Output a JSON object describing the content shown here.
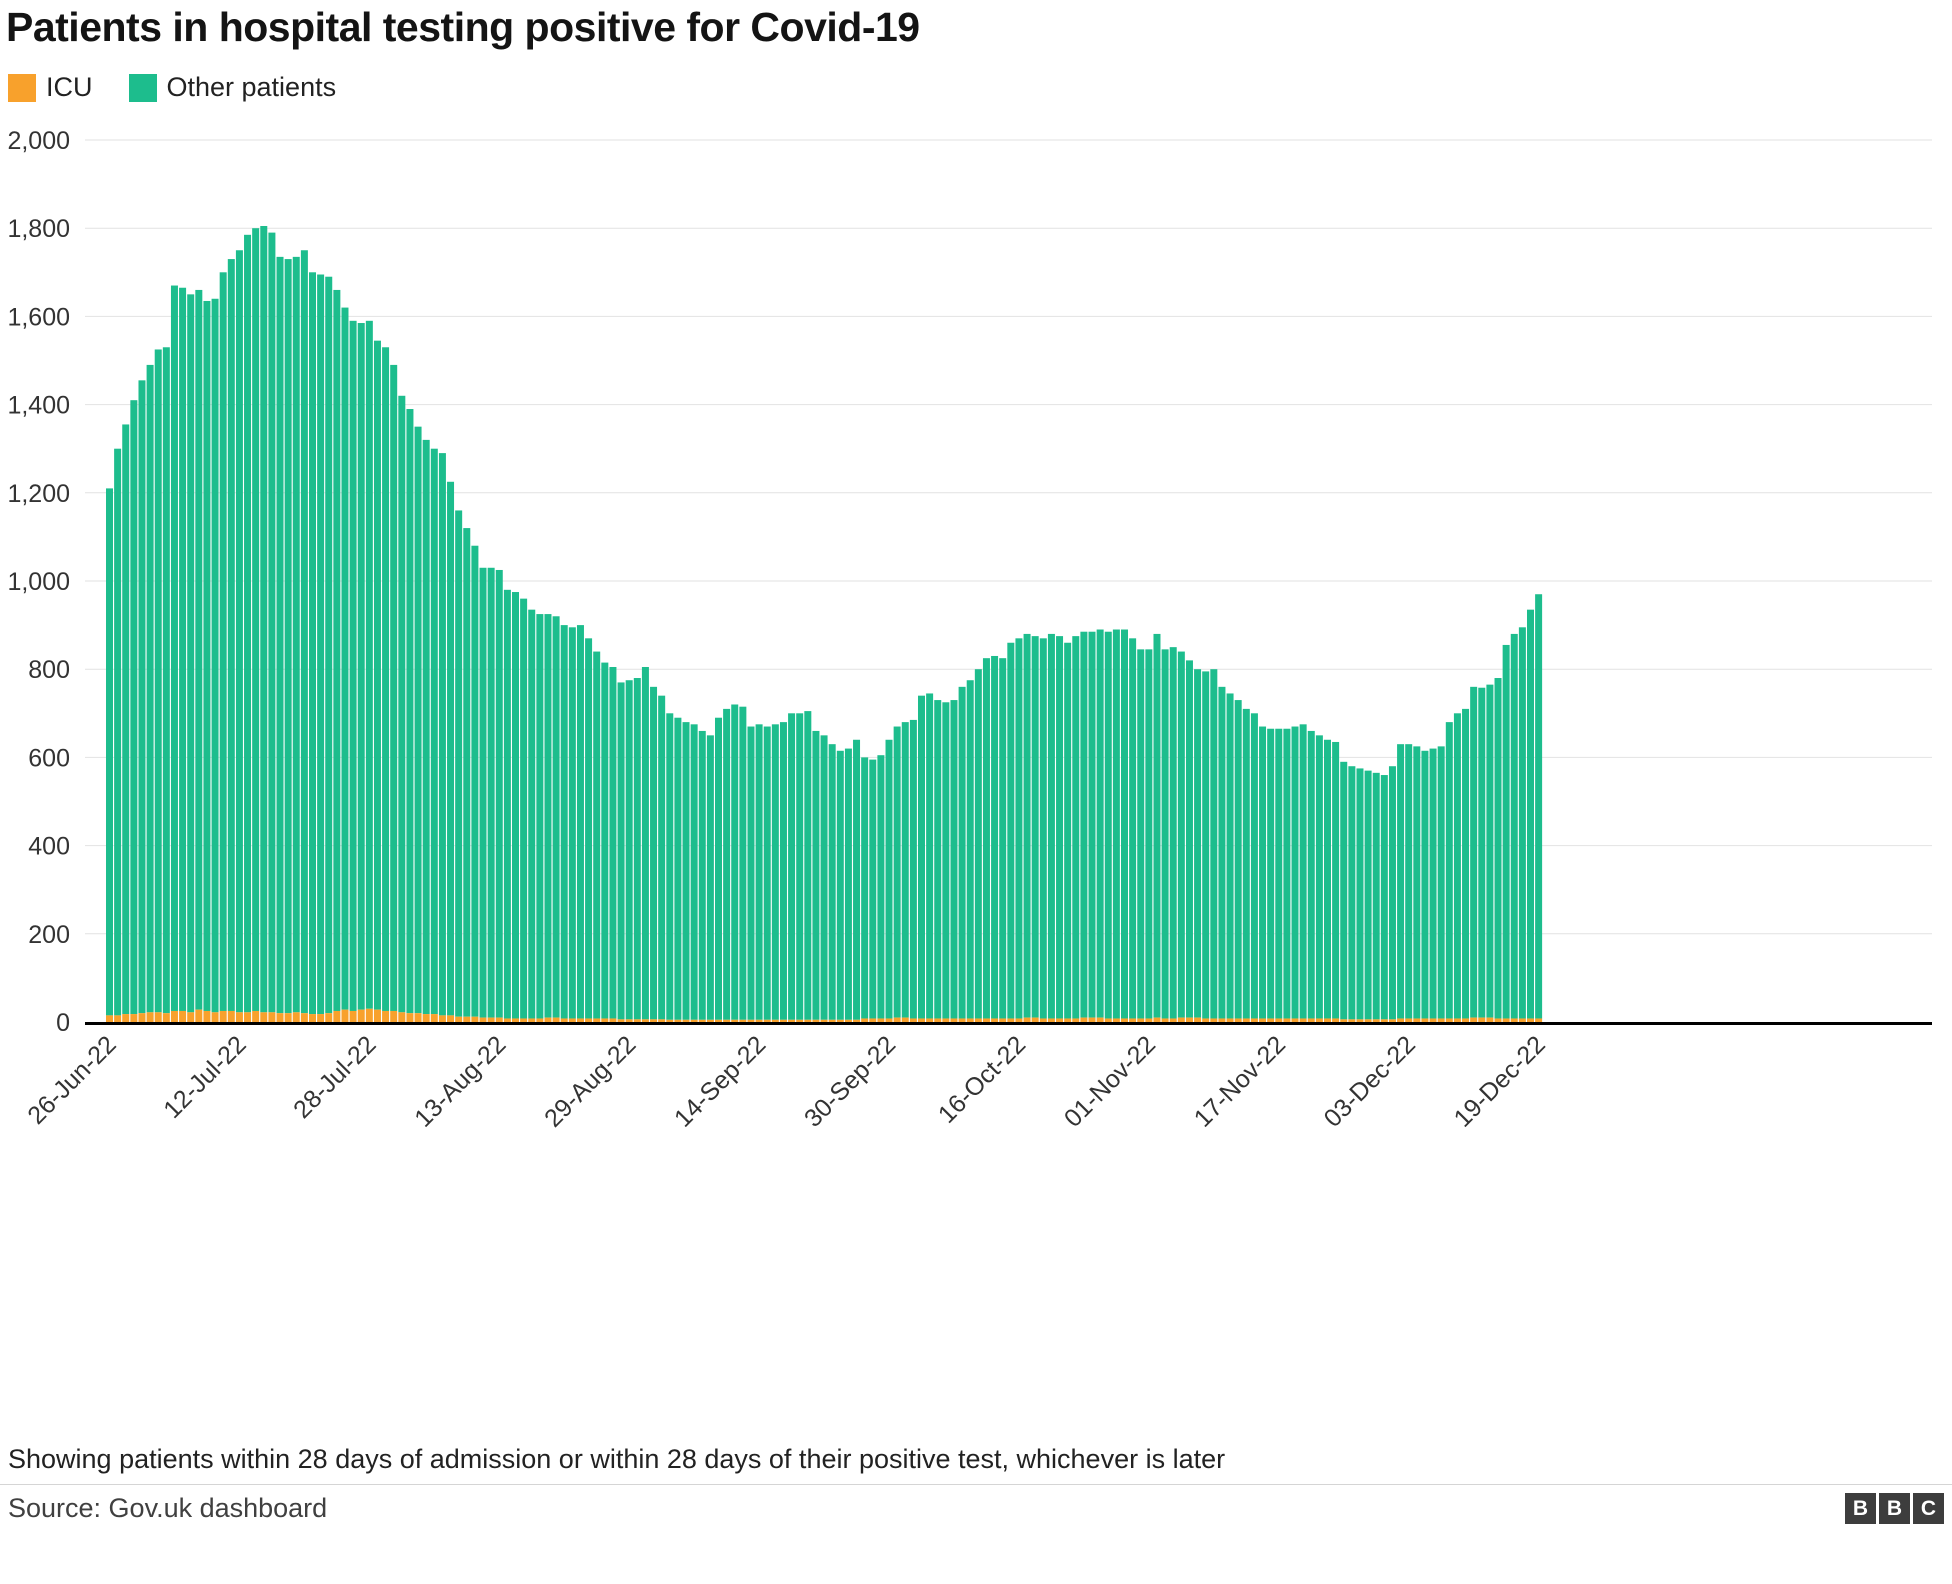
{
  "title": "Patients in hospital testing positive for Covid-19",
  "footnote": "Showing patients within 28 days of admission or within 28 days of their positive test, whichever is later",
  "source": "Source: Gov.uk dashboard",
  "logo": {
    "letters": [
      "B",
      "B",
      "C"
    ]
  },
  "chart_data": {
    "type": "bar",
    "stacked": true,
    "title": "Patients in hospital testing positive for Covid-19",
    "xlabel": "",
    "ylabel": "",
    "ylim": [
      0,
      2000
    ],
    "grid": "horizontal",
    "legend_position": "top-left",
    "n_bars": 177,
    "x_tick_labels": [
      "26-Jun-22",
      "12-Jul-22",
      "28-Jul-22",
      "13-Aug-22",
      "29-Aug-22",
      "14-Sep-22",
      "30-Sep-22",
      "16-Oct-22",
      "01-Nov-22",
      "17-Nov-22",
      "03-Dec-22",
      "19-Dec-22"
    ],
    "x_tick_indices": [
      0,
      16,
      32,
      48,
      64,
      80,
      96,
      112,
      128,
      144,
      160,
      176
    ],
    "ytick_values": [
      0,
      200,
      400,
      600,
      800,
      1000,
      1200,
      1400,
      1600,
      1800,
      2000
    ],
    "ytick_labels": [
      "0",
      "200",
      "400",
      "600",
      "800",
      "1,000",
      "1,200",
      "1,400",
      "1,600",
      "1,800",
      "2,000"
    ],
    "series": [
      {
        "name": "ICU",
        "color": "#f8a12c",
        "values": [
          15,
          15,
          18,
          18,
          20,
          22,
          22,
          20,
          25,
          25,
          22,
          28,
          25,
          22,
          25,
          25,
          22,
          22,
          25,
          22,
          22,
          20,
          20,
          22,
          20,
          18,
          18,
          20,
          25,
          28,
          25,
          28,
          30,
          28,
          25,
          25,
          22,
          20,
          20,
          18,
          18,
          15,
          15,
          12,
          12,
          12,
          10,
          10,
          10,
          8,
          8,
          8,
          8,
          8,
          10,
          10,
          8,
          8,
          8,
          8,
          8,
          8,
          8,
          6,
          6,
          6,
          6,
          6,
          6,
          5,
          5,
          5,
          5,
          5,
          5,
          5,
          5,
          5,
          5,
          5,
          5,
          5,
          5,
          5,
          5,
          5,
          5,
          5,
          5,
          5,
          5,
          5,
          5,
          8,
          8,
          8,
          8,
          10,
          10,
          8,
          8,
          8,
          8,
          8,
          8,
          8,
          8,
          8,
          8,
          8,
          8,
          8,
          8,
          10,
          10,
          8,
          8,
          8,
          8,
          8,
          10,
          10,
          10,
          8,
          8,
          8,
          8,
          8,
          8,
          10,
          8,
          8,
          10,
          10,
          10,
          8,
          8,
          8,
          8,
          8,
          8,
          8,
          8,
          8,
          8,
          8,
          8,
          8,
          8,
          8,
          8,
          8,
          6,
          6,
          6,
          6,
          6,
          6,
          6,
          8,
          8,
          8,
          8,
          8,
          8,
          8,
          8,
          8,
          10,
          10,
          10,
          8,
          8,
          8,
          8,
          8,
          8
        ]
      },
      {
        "name": "Other patients",
        "color": "#1dbd8d",
        "values": [
          1195,
          1285,
          1337,
          1392,
          1435,
          1468,
          1503,
          1510,
          1645,
          1640,
          1628,
          1632,
          1610,
          1618,
          1675,
          1705,
          1728,
          1763,
          1775,
          1783,
          1768,
          1715,
          1710,
          1713,
          1730,
          1682,
          1677,
          1670,
          1635,
          1592,
          1565,
          1557,
          1560,
          1517,
          1505,
          1465,
          1398,
          1370,
          1330,
          1302,
          1282,
          1275,
          1210,
          1148,
          1108,
          1068,
          1020,
          1020,
          1015,
          972,
          967,
          952,
          927,
          917,
          915,
          910,
          892,
          887,
          892,
          862,
          832,
          807,
          797,
          764,
          769,
          774,
          799,
          754,
          734,
          695,
          685,
          675,
          670,
          655,
          645,
          685,
          705,
          715,
          710,
          665,
          670,
          665,
          670,
          675,
          695,
          695,
          700,
          655,
          645,
          625,
          610,
          615,
          635,
          592,
          587,
          597,
          632,
          660,
          670,
          677,
          732,
          737,
          722,
          717,
          722,
          752,
          767,
          792,
          817,
          822,
          817,
          852,
          862,
          870,
          865,
          862,
          872,
          867,
          852,
          867,
          875,
          875,
          880,
          877,
          882,
          882,
          862,
          837,
          837,
          870,
          837,
          842,
          830,
          810,
          790,
          787,
          792,
          752,
          737,
          722,
          702,
          692,
          662,
          657,
          657,
          657,
          662,
          667,
          652,
          642,
          632,
          627,
          584,
          574,
          569,
          564,
          559,
          554,
          574,
          622,
          622,
          617,
          607,
          612,
          617,
          672,
          692,
          702,
          750,
          748,
          755,
          772,
          847,
          872,
          887,
          927,
          962
        ]
      }
    ]
  }
}
